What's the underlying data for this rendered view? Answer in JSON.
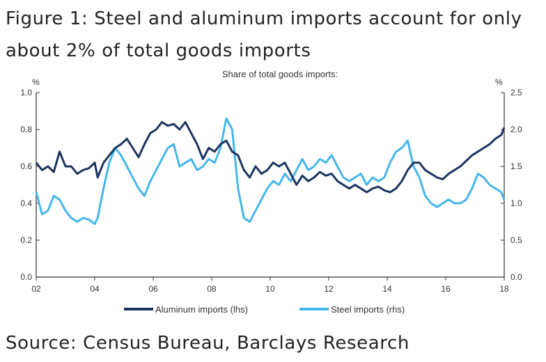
{
  "figure": {
    "title": "Figure 1: Steel and aluminum imports account for only about 2% of total goods imports",
    "source": "Source: Census Bureau, Barclays Research"
  },
  "colors": {
    "aluminum": "#1c3461",
    "steel": "#45b6ea",
    "axis": "#333333"
  },
  "chart_data": {
    "type": "line",
    "title": "Share of total goods imports:",
    "left_axis": {
      "unit": "%",
      "range": [
        0,
        1.0
      ],
      "ticks": [
        "0.0",
        "0.2",
        "0.4",
        "0.6",
        "0.8",
        "1.0"
      ]
    },
    "right_axis": {
      "unit": "%",
      "range": [
        0,
        2.5
      ],
      "ticks": [
        "0.0",
        "0.5",
        "1.0",
        "1.5",
        "2.0",
        "2.5"
      ]
    },
    "x_range": [
      2002,
      2018
    ],
    "x_ticks": [
      "02",
      "04",
      "06",
      "08",
      "10",
      "12",
      "14",
      "16",
      "18"
    ],
    "legend": {
      "placement": "bottom-center"
    },
    "series": [
      {
        "name": "Aluminum imports (lhs)",
        "axis": "left",
        "x": [
          2002.0,
          2002.2,
          2002.4,
          2002.6,
          2002.8,
          2003.0,
          2003.2,
          2003.4,
          2003.6,
          2003.8,
          2004.0,
          2004.1,
          2004.3,
          2004.5,
          2004.7,
          2004.9,
          2005.1,
          2005.3,
          2005.5,
          2005.7,
          2005.9,
          2006.1,
          2006.3,
          2006.5,
          2006.7,
          2006.9,
          2007.1,
          2007.3,
          2007.5,
          2007.7,
          2007.9,
          2008.1,
          2008.3,
          2008.5,
          2008.7,
          2008.9,
          2009.1,
          2009.3,
          2009.5,
          2009.7,
          2009.9,
          2010.1,
          2010.3,
          2010.5,
          2010.7,
          2010.9,
          2011.1,
          2011.3,
          2011.5,
          2011.7,
          2011.9,
          2012.1,
          2012.3,
          2012.5,
          2012.7,
          2012.9,
          2013.1,
          2013.3,
          2013.5,
          2013.7,
          2013.9,
          2014.1,
          2014.3,
          2014.5,
          2014.7,
          2014.9,
          2015.1,
          2015.3,
          2015.5,
          2015.7,
          2015.9,
          2016.1,
          2016.3,
          2016.5,
          2016.7,
          2016.9,
          2017.1,
          2017.3,
          2017.5,
          2017.7,
          2017.9,
          2018.0
        ],
        "values": [
          0.62,
          0.58,
          0.6,
          0.57,
          0.68,
          0.6,
          0.6,
          0.56,
          0.58,
          0.59,
          0.62,
          0.54,
          0.62,
          0.66,
          0.7,
          0.72,
          0.75,
          0.7,
          0.65,
          0.72,
          0.78,
          0.8,
          0.84,
          0.82,
          0.83,
          0.8,
          0.84,
          0.78,
          0.72,
          0.64,
          0.7,
          0.68,
          0.72,
          0.74,
          0.68,
          0.66,
          0.58,
          0.54,
          0.6,
          0.56,
          0.58,
          0.62,
          0.6,
          0.62,
          0.56,
          0.5,
          0.55,
          0.52,
          0.54,
          0.57,
          0.55,
          0.56,
          0.52,
          0.5,
          0.48,
          0.5,
          0.48,
          0.46,
          0.48,
          0.49,
          0.47,
          0.46,
          0.48,
          0.52,
          0.58,
          0.62,
          0.62,
          0.58,
          0.56,
          0.54,
          0.53,
          0.56,
          0.58,
          0.6,
          0.63,
          0.66,
          0.68,
          0.7,
          0.72,
          0.75,
          0.77,
          0.81
        ]
      },
      {
        "name": "Steel imports (rhs)",
        "axis": "right",
        "x": [
          2002.0,
          2002.2,
          2002.4,
          2002.6,
          2002.8,
          2003.0,
          2003.2,
          2003.4,
          2003.6,
          2003.8,
          2004.0,
          2004.1,
          2004.3,
          2004.5,
          2004.7,
          2004.9,
          2005.1,
          2005.3,
          2005.5,
          2005.7,
          2005.9,
          2006.1,
          2006.3,
          2006.5,
          2006.7,
          2006.9,
          2007.1,
          2007.3,
          2007.5,
          2007.7,
          2007.9,
          2008.1,
          2008.3,
          2008.5,
          2008.7,
          2008.9,
          2009.1,
          2009.3,
          2009.5,
          2009.7,
          2009.9,
          2010.1,
          2010.3,
          2010.5,
          2010.7,
          2010.9,
          2011.1,
          2011.3,
          2011.5,
          2011.7,
          2011.9,
          2012.1,
          2012.3,
          2012.5,
          2012.7,
          2012.9,
          2013.1,
          2013.3,
          2013.5,
          2013.7,
          2013.9,
          2014.1,
          2014.3,
          2014.5,
          2014.7,
          2014.9,
          2015.1,
          2015.3,
          2015.5,
          2015.7,
          2015.9,
          2016.1,
          2016.3,
          2016.5,
          2016.7,
          2016.9,
          2017.1,
          2017.3,
          2017.5,
          2017.7,
          2017.9,
          2018.0
        ],
        "values": [
          1.15,
          0.85,
          0.9,
          1.1,
          1.05,
          0.9,
          0.8,
          0.75,
          0.8,
          0.78,
          0.72,
          0.8,
          1.2,
          1.55,
          1.75,
          1.65,
          1.5,
          1.35,
          1.2,
          1.1,
          1.3,
          1.45,
          1.6,
          1.75,
          1.8,
          1.5,
          1.55,
          1.6,
          1.45,
          1.5,
          1.6,
          1.55,
          1.75,
          2.15,
          2.0,
          1.2,
          0.8,
          0.75,
          0.9,
          1.05,
          1.2,
          1.3,
          1.25,
          1.4,
          1.3,
          1.45,
          1.6,
          1.45,
          1.5,
          1.6,
          1.55,
          1.65,
          1.5,
          1.35,
          1.3,
          1.35,
          1.4,
          1.25,
          1.35,
          1.3,
          1.35,
          1.55,
          1.7,
          1.75,
          1.85,
          1.5,
          1.35,
          1.1,
          1.0,
          0.95,
          1.0,
          1.05,
          1.0,
          1.0,
          1.05,
          1.2,
          1.4,
          1.35,
          1.25,
          1.2,
          1.15,
          1.05
        ]
      }
    ]
  }
}
